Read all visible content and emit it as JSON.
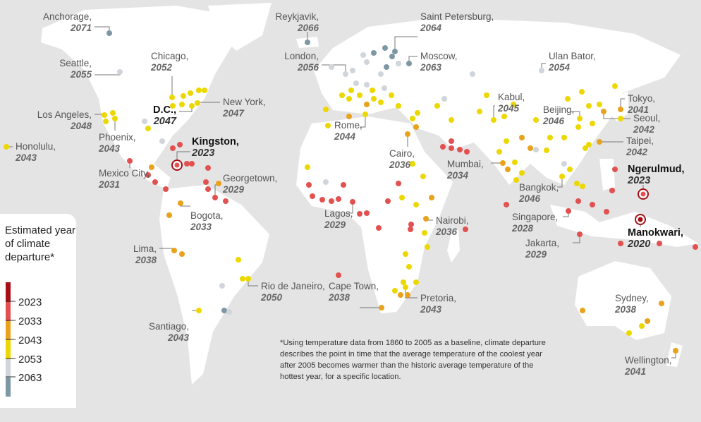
{
  "legend": {
    "title": "Estimated year of climate departure*",
    "ticks": [
      "2023",
      "2033",
      "2043",
      "2053",
      "2063"
    ],
    "colors": [
      "#a50f15",
      "#e2514f",
      "#e8a21c",
      "#ecd800",
      "#cfd5da",
      "#7d97a3"
    ]
  },
  "footnote": "*Using temperature data from 1860 to 2005 as a baseline, climate departure describes the point in time that the average temperature of the coolest year after 2005 becomes warmer than the historic average temperature of the hottest year, for a specific location.",
  "colors": {
    "background": "#e4e4e4",
    "land": "#ffffff"
  },
  "cities": [
    {
      "name": "Anchorage,",
      "year": "2071"
    },
    {
      "name": "Reykjavik,",
      "year": "2066"
    },
    {
      "name": "Saint Petersburg,",
      "year": "2064"
    },
    {
      "name": "Moscow,",
      "year": "2063"
    },
    {
      "name": "London,",
      "year": "2056"
    },
    {
      "name": "Ulan Bator,",
      "year": "2054"
    },
    {
      "name": "Seattle,",
      "year": "2055"
    },
    {
      "name": "Chicago,",
      "year": "2052"
    },
    {
      "name": "New York,",
      "year": "2047"
    },
    {
      "name": "Los Angeles,",
      "year": "2048"
    },
    {
      "name": "D.C.,",
      "year": "2047",
      "highlight": true
    },
    {
      "name": "Phoenix,",
      "year": "2043"
    },
    {
      "name": "Honolulu,",
      "year": "2043"
    },
    {
      "name": "Kingston,",
      "year": "2023",
      "highlight": true
    },
    {
      "name": "Mexico City,",
      "year": "2031"
    },
    {
      "name": "Georgetown,",
      "year": "2029"
    },
    {
      "name": "Bogota,",
      "year": "2033"
    },
    {
      "name": "Lima,",
      "year": "2038"
    },
    {
      "name": "Santiago,",
      "year": "2043"
    },
    {
      "name": "Rio de Janeiro,",
      "year": "2050"
    },
    {
      "name": "Rome,",
      "year": "2044"
    },
    {
      "name": "Lagos,",
      "year": "2029"
    },
    {
      "name": "Cairo,",
      "year": "2036"
    },
    {
      "name": "Nairobi,",
      "year": "2036"
    },
    {
      "name": "Cape Town,",
      "year": "2038"
    },
    {
      "name": "Pretoria,",
      "year": "2043"
    },
    {
      "name": "Kabul,",
      "year": "2045"
    },
    {
      "name": "Mumbai,",
      "year": "2034"
    },
    {
      "name": "Beijing,",
      "year": "2046"
    },
    {
      "name": "Tokyo,",
      "year": "2041"
    },
    {
      "name": "Seoul,",
      "year": "2042"
    },
    {
      "name": "Taipei,",
      "year": "2042"
    },
    {
      "name": "Bangkok,",
      "year": "2046"
    },
    {
      "name": "Singapore,",
      "year": "2028"
    },
    {
      "name": "Jakarta,",
      "year": "2029"
    },
    {
      "name": "Ngerulmud,",
      "year": "2023",
      "highlight": true
    },
    {
      "name": "Manokwari,",
      "year": "2020",
      "highlight": true
    },
    {
      "name": "Sydney,",
      "year": "2038"
    },
    {
      "name": "Wellington,",
      "year": "2041"
    }
  ]
}
